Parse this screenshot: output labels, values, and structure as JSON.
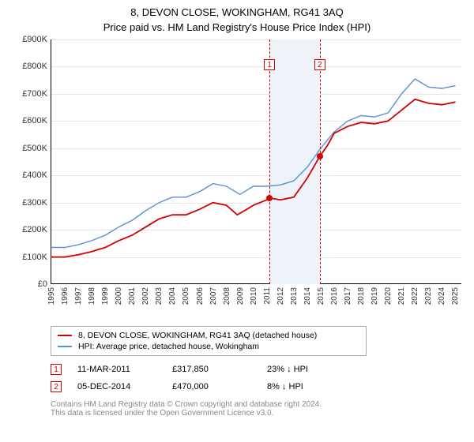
{
  "title": "8, DEVON CLOSE, WOKINGHAM, RG41 3AQ",
  "subtitle": "Price paid vs. HM Land Registry's House Price Index (HPI)",
  "chart": {
    "type": "line",
    "x_range": [
      1995,
      2025.5
    ],
    "y_range": [
      0,
      900
    ],
    "y_ticks": [
      0,
      100,
      200,
      300,
      400,
      500,
      600,
      700,
      800,
      900
    ],
    "y_tick_labels": [
      "£0",
      "£100K",
      "£200K",
      "£300K",
      "£400K",
      "£500K",
      "£600K",
      "£700K",
      "£800K",
      "£900K"
    ],
    "x_ticks": [
      1995,
      1996,
      1997,
      1998,
      1999,
      2000,
      2001,
      2002,
      2003,
      2004,
      2005,
      2006,
      2007,
      2008,
      2009,
      2010,
      2011,
      2012,
      2013,
      2014,
      2015,
      2016,
      2017,
      2018,
      2019,
      2020,
      2021,
      2022,
      2023,
      2024,
      2025
    ],
    "grid_color": "#e5e5e5",
    "background_color": "#ffffff",
    "band": {
      "start": 2011.2,
      "end": 2014.93,
      "color": "#eef3fa"
    },
    "series": [
      {
        "name": "price_paid",
        "label": "8, DEVON CLOSE, WOKINGHAM, RG41 3AQ (detached house)",
        "color": "#d40000",
        "width": 1.8,
        "data": [
          [
            1995,
            100
          ],
          [
            1996,
            100
          ],
          [
            1997,
            108
          ],
          [
            1998,
            120
          ],
          [
            1999,
            135
          ],
          [
            2000,
            160
          ],
          [
            2001,
            180
          ],
          [
            2002,
            210
          ],
          [
            2003,
            240
          ],
          [
            2004,
            255
          ],
          [
            2005,
            255
          ],
          [
            2006,
            275
          ],
          [
            2007,
            300
          ],
          [
            2008,
            290
          ],
          [
            2008.8,
            255
          ],
          [
            2009.5,
            275
          ],
          [
            2010,
            290
          ],
          [
            2011,
            310
          ],
          [
            2011.2,
            317
          ],
          [
            2012,
            310
          ],
          [
            2013,
            320
          ],
          [
            2014,
            390
          ],
          [
            2014.93,
            470
          ],
          [
            2015.5,
            510
          ],
          [
            2016,
            555
          ],
          [
            2017,
            580
          ],
          [
            2018,
            595
          ],
          [
            2019,
            590
          ],
          [
            2020,
            600
          ],
          [
            2021,
            640
          ],
          [
            2022,
            680
          ],
          [
            2023,
            665
          ],
          [
            2024,
            660
          ],
          [
            2025,
            670
          ]
        ]
      },
      {
        "name": "hpi",
        "label": "HPI: Average price, detached house, Wokingham",
        "color": "#5b8fd6",
        "width": 1.4,
        "data": [
          [
            1995,
            135
          ],
          [
            1996,
            135
          ],
          [
            1997,
            145
          ],
          [
            1998,
            160
          ],
          [
            1999,
            180
          ],
          [
            2000,
            210
          ],
          [
            2001,
            235
          ],
          [
            2002,
            270
          ],
          [
            2003,
            300
          ],
          [
            2004,
            320
          ],
          [
            2005,
            320
          ],
          [
            2006,
            340
          ],
          [
            2007,
            370
          ],
          [
            2008,
            360
          ],
          [
            2009,
            330
          ],
          [
            2010,
            360
          ],
          [
            2011,
            360
          ],
          [
            2012,
            365
          ],
          [
            2013,
            380
          ],
          [
            2014,
            430
          ],
          [
            2015,
            500
          ],
          [
            2016,
            560
          ],
          [
            2017,
            600
          ],
          [
            2018,
            620
          ],
          [
            2019,
            615
          ],
          [
            2020,
            630
          ],
          [
            2021,
            700
          ],
          [
            2022,
            755
          ],
          [
            2023,
            725
          ],
          [
            2024,
            720
          ],
          [
            2025,
            730
          ]
        ]
      }
    ],
    "markers": [
      {
        "id": "1",
        "x": 2011.2,
        "y": 317
      },
      {
        "id": "2",
        "x": 2014.93,
        "y": 470
      }
    ]
  },
  "events": [
    {
      "id": "1",
      "date": "11-MAR-2011",
      "price": "£317,850",
      "delta": "23% ↓ HPI"
    },
    {
      "id": "2",
      "date": "05-DEC-2014",
      "price": "£470,000",
      "delta": "8% ↓ HPI"
    }
  ],
  "footer": {
    "line1": "Contains HM Land Registry data © Crown copyright and database right 2024.",
    "line2": "This data is licensed under the Open Government Licence v3.0."
  }
}
